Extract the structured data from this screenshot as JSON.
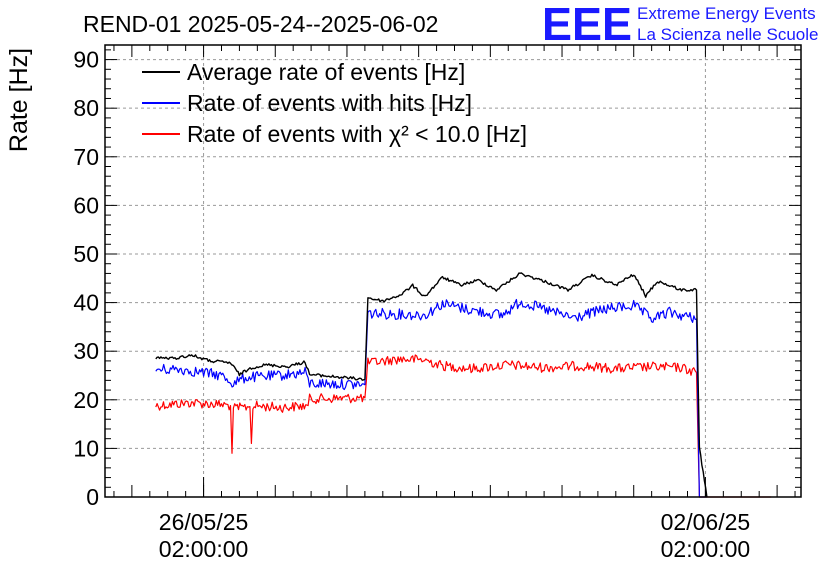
{
  "chart_data": {
    "type": "line",
    "title": "REND-01 2025-05-24--2025-06-02",
    "ylabel": "Rate [Hz]",
    "xlabel": "",
    "ylim": [
      0,
      93
    ],
    "xlim": [
      "2025-05-24T17:00:00",
      "2025-06-03T10:00:00"
    ],
    "yticks": [
      0,
      10,
      20,
      30,
      40,
      50,
      60,
      70,
      80,
      90
    ],
    "xticks": [
      {
        "x": "2025-05-26T02:00:00",
        "line1": "26/05/25",
        "line2": "02:00:00"
      },
      {
        "x": "2025-06-02T02:00:00",
        "line1": "02/06/25",
        "line2": "02:00:00"
      }
    ],
    "grid": true,
    "legend": {
      "position": "top-left",
      "entries": [
        {
          "label": "Average rate of events [Hz]",
          "color": "#000000"
        },
        {
          "label": "Rate of events with hits [Hz]",
          "color": "#0000ff"
        },
        {
          "label": "Rate of events with χ² < 10.0 [Hz]",
          "color": "#ff0000"
        }
      ]
    },
    "series": [
      {
        "name": "Average rate of events [Hz]",
        "color": "#000000",
        "noise": 0.3,
        "points": [
          [
            "2025-05-25T10:00:00",
            28.7
          ],
          [
            "2025-05-25T16:00:00",
            28.5
          ],
          [
            "2025-05-25T22:00:00",
            29.2
          ],
          [
            "2025-05-26T04:00:00",
            28.0
          ],
          [
            "2025-05-26T11:00:00",
            27.6
          ],
          [
            "2025-05-26T14:00:00",
            25.2
          ],
          [
            "2025-05-26T18:00:00",
            26.6
          ],
          [
            "2025-05-26T23:00:00",
            27.2
          ],
          [
            "2025-05-27T06:00:00",
            26.8
          ],
          [
            "2025-05-27T12:00:00",
            27.8
          ],
          [
            "2025-05-27T13:30:00",
            25.2
          ],
          [
            "2025-05-28T08:00:00",
            24.2
          ],
          [
            "2025-05-28T09:00:00",
            41.0
          ],
          [
            "2025-05-28T14:00:00",
            40.3
          ],
          [
            "2025-05-28T20:00:00",
            41.6
          ],
          [
            "2025-05-29T00:00:00",
            43.5
          ],
          [
            "2025-05-29T04:00:00",
            41.2
          ],
          [
            "2025-05-29T10:00:00",
            45.2
          ],
          [
            "2025-05-29T16:00:00",
            43.6
          ],
          [
            "2025-05-29T22:00:00",
            44.6
          ],
          [
            "2025-05-30T04:00:00",
            42.6
          ],
          [
            "2025-05-30T12:00:00",
            46.0
          ],
          [
            "2025-05-30T20:00:00",
            44.4
          ],
          [
            "2025-05-31T04:00:00",
            42.6
          ],
          [
            "2025-05-31T12:00:00",
            45.6
          ],
          [
            "2025-05-31T20:00:00",
            43.6
          ],
          [
            "2025-06-01T02:00:00",
            45.8
          ],
          [
            "2025-06-01T06:00:00",
            41.4
          ],
          [
            "2025-06-01T10:00:00",
            44.4
          ],
          [
            "2025-06-01T18:00:00",
            42.6
          ],
          [
            "2025-06-01T23:00:00",
            42.6
          ],
          [
            "2025-06-02T00:00:00",
            10.0
          ],
          [
            "2025-06-02T02:30:00",
            0.0
          ]
        ]
      },
      {
        "name": "Rate of events with hits [Hz]",
        "color": "#0000ff",
        "noise": 1.1,
        "points": [
          [
            "2025-05-25T10:00:00",
            26.2
          ],
          [
            "2025-05-25T18:00:00",
            26.3
          ],
          [
            "2025-05-26T02:00:00",
            25.6
          ],
          [
            "2025-05-26T08:00:00",
            25.0
          ],
          [
            "2025-05-26T12:00:00",
            23.4
          ],
          [
            "2025-05-26T16:00:00",
            24.6
          ],
          [
            "2025-05-27T02:00:00",
            24.9
          ],
          [
            "2025-05-27T12:00:00",
            25.6
          ],
          [
            "2025-05-27T13:30:00",
            23.4
          ],
          [
            "2025-05-28T08:00:00",
            23.1
          ],
          [
            "2025-05-28T09:00:00",
            37.8
          ],
          [
            "2025-05-28T20:00:00",
            37.6
          ],
          [
            "2025-05-29T04:00:00",
            37.4
          ],
          [
            "2025-05-29T10:00:00",
            39.8
          ],
          [
            "2025-05-29T20:00:00",
            38.4
          ],
          [
            "2025-05-30T06:00:00",
            37.4
          ],
          [
            "2025-05-30T12:00:00",
            40.2
          ],
          [
            "2025-05-30T20:00:00",
            38.6
          ],
          [
            "2025-05-31T06:00:00",
            36.8
          ],
          [
            "2025-05-31T16:00:00",
            38.6
          ],
          [
            "2025-06-01T02:00:00",
            39.4
          ],
          [
            "2025-06-01T08:00:00",
            36.6
          ],
          [
            "2025-06-01T14:00:00",
            38.0
          ],
          [
            "2025-06-01T23:00:00",
            36.6
          ],
          [
            "2025-06-02T00:00:00",
            0.0
          ],
          [
            "2025-06-02T02:30:00",
            0.0
          ]
        ]
      },
      {
        "name": "Rate of events with χ² < 10.0 [Hz]",
        "color": "#ff0000",
        "noise": 1.0,
        "points": [
          [
            "2025-05-25T10:00:00",
            18.8
          ],
          [
            "2025-05-25T22:00:00",
            19.4
          ],
          [
            "2025-05-26T08:00:00",
            19.0
          ],
          [
            "2025-05-26T11:00:00",
            18.8
          ],
          [
            "2025-05-26T11:30:00",
            9.0
          ],
          [
            "2025-05-26T12:00:00",
            18.2
          ],
          [
            "2025-05-26T17:30:00",
            18.6
          ],
          [
            "2025-05-26T18:00:00",
            11.0
          ],
          [
            "2025-05-26T18:30:00",
            18.8
          ],
          [
            "2025-05-27T04:00:00",
            18.4
          ],
          [
            "2025-05-27T13:00:00",
            18.8
          ],
          [
            "2025-05-27T13:30:00",
            20.2
          ],
          [
            "2025-05-28T08:00:00",
            20.4
          ],
          [
            "2025-05-28T09:00:00",
            27.6
          ],
          [
            "2025-05-28T20:00:00",
            28.4
          ],
          [
            "2025-05-29T04:00:00",
            28.2
          ],
          [
            "2025-05-29T10:00:00",
            27.0
          ],
          [
            "2025-05-29T20:00:00",
            26.4
          ],
          [
            "2025-05-30T08:00:00",
            27.2
          ],
          [
            "2025-05-30T20:00:00",
            26.6
          ],
          [
            "2025-05-31T08:00:00",
            27.0
          ],
          [
            "2025-05-31T20:00:00",
            26.4
          ],
          [
            "2025-06-01T08:00:00",
            26.8
          ],
          [
            "2025-06-01T18:00:00",
            26.6
          ],
          [
            "2025-06-01T23:00:00",
            25.6
          ],
          [
            "2025-06-02T00:00:00",
            0.0
          ],
          [
            "2025-06-03T00:00:00",
            0.0
          ]
        ]
      }
    ]
  },
  "logo": {
    "mark": "EEE",
    "line1": "Extreme Energy Events",
    "line2": "La Scienza nelle Scuole"
  }
}
